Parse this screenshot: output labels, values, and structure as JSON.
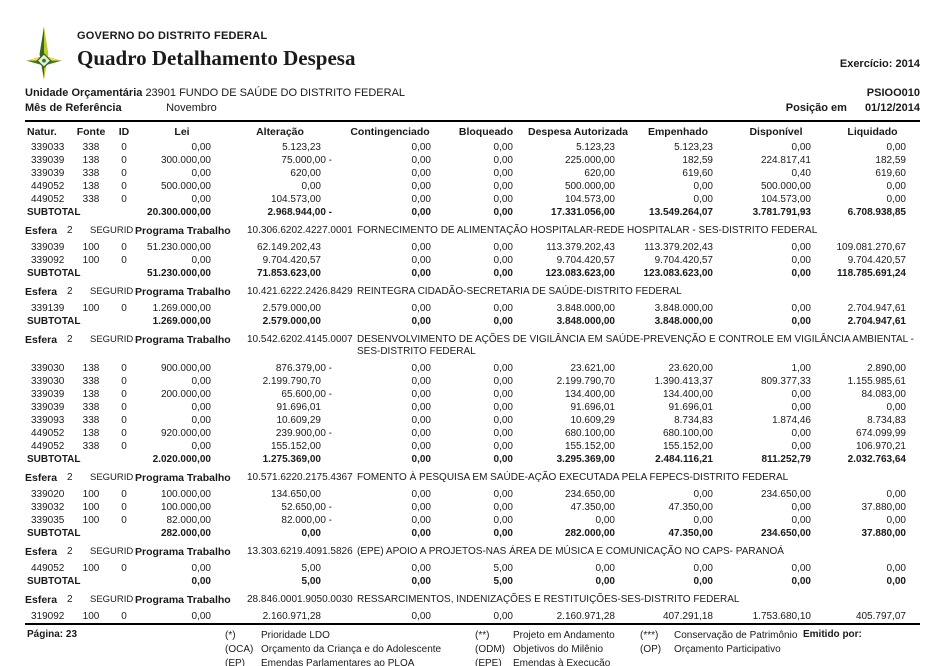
{
  "header": {
    "org": "GOVERNO DO DISTRITO FEDERAL",
    "title": "Quadro Detalhamento Despesa",
    "exercicio_label": "Exercício:",
    "exercicio_value": "2014",
    "report_code": "PSIOO010",
    "unidade_label": "Unidade Orçamentária",
    "unidade_value": "23901  FUNDO DE SAÚDE DO DISTRITO FEDERAL",
    "mes_label": "Mês de Referência",
    "mes_value": "Novembro",
    "posicao_label": "Posição em",
    "posicao_value": "01/12/2014"
  },
  "table": {
    "columns": [
      "Natur.",
      "Fonte",
      "ID",
      "Lei",
      "Alteração",
      "Contingenciado",
      "Bloqueado",
      "Despesa Autorizada",
      "Empenhado",
      "Disponível",
      "Liquidado"
    ],
    "esfera_label": "Esfera",
    "programa_label": "Programa Trabalho",
    "subtotal_label": "SUBTOTAL",
    "sections": [
      {
        "rows": [
          {
            "natur": "339033",
            "fonte": "338",
            "id": "0",
            "values": [
              "0,00",
              "5.123,23",
              "0,00",
              "0,00",
              "5.123,23",
              "5.123,23",
              "0,00",
              "0,00"
            ]
          },
          {
            "natur": "339039",
            "fonte": "138",
            "id": "0",
            "values": [
              "300.000,00",
              "75.000,00 -",
              "0,00",
              "0,00",
              "225.000,00",
              "182,59",
              "224.817,41",
              "182,59"
            ]
          },
          {
            "natur": "339039",
            "fonte": "338",
            "id": "0",
            "values": [
              "0,00",
              "620,00",
              "0,00",
              "0,00",
              "620,00",
              "619,60",
              "0,40",
              "619,60"
            ]
          },
          {
            "natur": "449052",
            "fonte": "138",
            "id": "0",
            "values": [
              "500.000,00",
              "0,00",
              "0,00",
              "0,00",
              "500.000,00",
              "0,00",
              "500.000,00",
              "0,00"
            ]
          },
          {
            "natur": "449052",
            "fonte": "338",
            "id": "0",
            "values": [
              "0,00",
              "104.573,00",
              "0,00",
              "0,00",
              "104.573,00",
              "0,00",
              "104.573,00",
              "0,00"
            ]
          }
        ],
        "subtotal": [
          "20.300.000,00",
          "2.968.944,00 -",
          "0,00",
          "0,00",
          "17.331.056,00",
          "13.549.264,07",
          "3.781.791,93",
          "6.708.938,85"
        ]
      },
      {
        "esfera_value": "2",
        "seguridade": "SEGURID",
        "programa_code": "10.306.6202.4227.0001",
        "descricao": "FORNECIMENTO DE ALIMENTAÇÃO HOSPITALAR-REDE HOSPITALAR - SES-DISTRITO FEDERAL",
        "rows": [
          {
            "natur": "339039",
            "fonte": "100",
            "id": "0",
            "values": [
              "51.230.000,00",
              "62.149.202,43",
              "0,00",
              "0,00",
              "113.379.202,43",
              "113.379.202,43",
              "0,00",
              "109.081.270,67"
            ]
          },
          {
            "natur": "339092",
            "fonte": "100",
            "id": "0",
            "values": [
              "0,00",
              "9.704.420,57",
              "0,00",
              "0,00",
              "9.704.420,57",
              "9.704.420,57",
              "0,00",
              "9.704.420,57"
            ]
          }
        ],
        "subtotal": [
          "51.230.000,00",
          "71.853.623,00",
          "0,00",
          "0,00",
          "123.083.623,00",
          "123.083.623,00",
          "0,00",
          "118.785.691,24"
        ]
      },
      {
        "esfera_value": "2",
        "seguridade": "SEGURID",
        "programa_code": "10.421.6222.2426.8429",
        "descricao": "REINTEGRA CIDADÃO-SECRETARIA DE SAÚDE-DISTRITO FEDERAL",
        "rows": [
          {
            "natur": "339139",
            "fonte": "100",
            "id": "0",
            "values": [
              "1.269.000,00",
              "2.579.000,00",
              "0,00",
              "0,00",
              "3.848.000,00",
              "3.848.000,00",
              "0,00",
              "2.704.947,61"
            ]
          }
        ],
        "subtotal": [
          "1.269.000,00",
          "2.579.000,00",
          "0,00",
          "0,00",
          "3.848.000,00",
          "3.848.000,00",
          "0,00",
          "2.704.947,61"
        ]
      },
      {
        "esfera_value": "2",
        "seguridade": "SEGURID",
        "programa_code": "10.542.6202.4145.0007",
        "descricao": "DESENVOLVIMENTO DE AÇÕES DE VIGILÂNCIA EM SAÚDE-PREVENÇÃO E CONTROLE EM VIGILÂNCIA AMBIENTAL - SES-DISTRITO FEDERAL",
        "rows": [
          {
            "natur": "339030",
            "fonte": "138",
            "id": "0",
            "values": [
              "900.000,00",
              "876.379,00 -",
              "0,00",
              "0,00",
              "23.621,00",
              "23.620,00",
              "1,00",
              "2.890,00"
            ]
          },
          {
            "natur": "339030",
            "fonte": "338",
            "id": "0",
            "values": [
              "0,00",
              "2.199.790,70",
              "0,00",
              "0,00",
              "2.199.790,70",
              "1.390.413,37",
              "809.377,33",
              "1.155.985,61"
            ]
          },
          {
            "natur": "339039",
            "fonte": "138",
            "id": "0",
            "values": [
              "200.000,00",
              "65.600,00 -",
              "0,00",
              "0,00",
              "134.400,00",
              "134.400,00",
              "0,00",
              "84.083,00"
            ]
          },
          {
            "natur": "339039",
            "fonte": "338",
            "id": "0",
            "values": [
              "0,00",
              "91.696,01",
              "0,00",
              "0,00",
              "91.696,01",
              "91.696,01",
              "0,00",
              "0,00"
            ]
          },
          {
            "natur": "339093",
            "fonte": "338",
            "id": "0",
            "values": [
              "0,00",
              "10.609,29",
              "0,00",
              "0,00",
              "10.609,29",
              "8.734,83",
              "1.874,46",
              "8.734,83"
            ]
          },
          {
            "natur": "449052",
            "fonte": "138",
            "id": "0",
            "values": [
              "920.000,00",
              "239.900,00 -",
              "0,00",
              "0,00",
              "680.100,00",
              "680.100,00",
              "0,00",
              "674.099,99"
            ]
          },
          {
            "natur": "449052",
            "fonte": "338",
            "id": "0",
            "values": [
              "0,00",
              "155.152,00",
              "0,00",
              "0,00",
              "155.152,00",
              "155.152,00",
              "0,00",
              "106.970,21"
            ]
          }
        ],
        "subtotal": [
          "2.020.000,00",
          "1.275.369,00",
          "0,00",
          "0,00",
          "3.295.369,00",
          "2.484.116,21",
          "811.252,79",
          "2.032.763,64"
        ]
      },
      {
        "esfera_value": "2",
        "seguridade": "SEGURID",
        "programa_code": "10.571.6220.2175.4367",
        "descricao": "FOMENTO À PESQUISA EM SAÚDE-AÇÃO EXECUTADA PELA FEPECS-DISTRITO FEDERAL",
        "rows": [
          {
            "natur": "339020",
            "fonte": "100",
            "id": "0",
            "values": [
              "100.000,00",
              "134.650,00",
              "0,00",
              "0,00",
              "234.650,00",
              "0,00",
              "234.650,00",
              "0,00"
            ]
          },
          {
            "natur": "339032",
            "fonte": "100",
            "id": "0",
            "values": [
              "100.000,00",
              "52.650,00 -",
              "0,00",
              "0,00",
              "47.350,00",
              "47.350,00",
              "0,00",
              "37.880,00"
            ]
          },
          {
            "natur": "339035",
            "fonte": "100",
            "id": "0",
            "values": [
              "82.000,00",
              "82.000,00 -",
              "0,00",
              "0,00",
              "0,00",
              "0,00",
              "0,00",
              "0,00"
            ]
          }
        ],
        "subtotal": [
          "282.000,00",
          "0,00",
          "0,00",
          "0,00",
          "282.000,00",
          "47.350,00",
          "234.650,00",
          "37.880,00"
        ]
      },
      {
        "esfera_value": "2",
        "seguridade": "SEGURID",
        "programa_code": "13.303.6219.4091.5826",
        "descricao": "(EPE) APOIO A PROJETOS-NAS ÁREA DE MÚSICA E COMUNICAÇÃO NO CAPS- PARANOÁ",
        "rows": [
          {
            "natur": "449052",
            "fonte": "100",
            "id": "0",
            "values": [
              "0,00",
              "5,00",
              "0,00",
              "5,00",
              "0,00",
              "0,00",
              "0,00",
              "0,00"
            ]
          }
        ],
        "subtotal": [
          "0,00",
          "5,00",
          "0,00",
          "5,00",
          "0,00",
          "0,00",
          "0,00",
          "0,00"
        ]
      },
      {
        "esfera_value": "2",
        "seguridade": "SEGURID",
        "programa_code": "28.846.0001.9050.0030",
        "descricao": "RESSARCIMENTOS, INDENIZAÇÕES E RESTITUIÇÕES-SES-DISTRITO FEDERAL",
        "rows": [
          {
            "natur": "319092",
            "fonte": "100",
            "id": "0",
            "values": [
              "0,00",
              "2.160.971,28",
              "0,00",
              "0,00",
              "2.160.971,28",
              "407.291,18",
              "1.753.680,10",
              "405.797,07"
            ]
          }
        ]
      }
    ]
  },
  "footer": {
    "pagina_label": "Página:",
    "pagina_value": "23",
    "emitido_label": "Emitido por:",
    "legend1": [
      {
        "m": "(*)",
        "t": "Prioridade LDO"
      },
      {
        "m": "(OCA)",
        "t": "Orçamento da Criança e do Adolescente"
      },
      {
        "m": "(EP)",
        "t": "Emendas Parlamentares ao PLOA"
      }
    ],
    "legend2": [
      {
        "m": "(**)",
        "t": "Projeto em Andamento"
      },
      {
        "m": "(ODM)",
        "t": "Objetivos do Milênio"
      },
      {
        "m": "(EPE)",
        "t": "Emendas à Execução"
      }
    ],
    "legend3": [
      {
        "m": "(***)",
        "t": "Conservação de Patrimônio"
      },
      {
        "m": "(OP)",
        "t": "Orçamento Participativo"
      }
    ]
  }
}
